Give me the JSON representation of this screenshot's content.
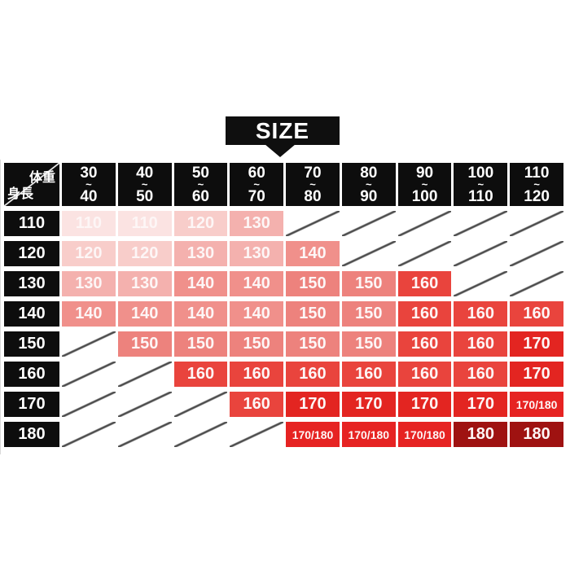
{
  "banner": {
    "label": "SIZE"
  },
  "chart_data": {
    "type": "table",
    "title": "SIZE",
    "corner": {
      "weight_label": "体重",
      "height_label": "身長"
    },
    "weight_columns": [
      {
        "from": "30",
        "tilde": "~",
        "to": "40"
      },
      {
        "from": "40",
        "tilde": "~",
        "to": "50"
      },
      {
        "from": "50",
        "tilde": "~",
        "to": "60"
      },
      {
        "from": "60",
        "tilde": "~",
        "to": "70"
      },
      {
        "from": "70",
        "tilde": "~",
        "to": "80"
      },
      {
        "from": "80",
        "tilde": "~",
        "to": "90"
      },
      {
        "from": "90",
        "tilde": "~",
        "to": "100"
      },
      {
        "from": "100",
        "tilde": "~",
        "to": "110"
      },
      {
        "from": "110",
        "tilde": "~",
        "to": "120"
      }
    ],
    "rows": [
      {
        "height": "110",
        "cells": [
          "110",
          "110",
          "120",
          "130",
          null,
          null,
          null,
          null,
          null
        ]
      },
      {
        "height": "120",
        "cells": [
          "120",
          "120",
          "130",
          "130",
          "140",
          null,
          null,
          null,
          null
        ]
      },
      {
        "height": "130",
        "cells": [
          "130",
          "130",
          "140",
          "140",
          "150",
          "150",
          "160",
          null,
          null
        ]
      },
      {
        "height": "140",
        "cells": [
          "140",
          "140",
          "140",
          "140",
          "150",
          "150",
          "160",
          "160",
          "160"
        ]
      },
      {
        "height": "150",
        "cells": [
          null,
          "150",
          "150",
          "150",
          "150",
          "150",
          "160",
          "160",
          "170"
        ]
      },
      {
        "height": "160",
        "cells": [
          null,
          null,
          "160",
          "160",
          "160",
          "160",
          "160",
          "160",
          "170"
        ]
      },
      {
        "height": "170",
        "cells": [
          null,
          null,
          null,
          "160",
          "170",
          "170",
          "170",
          "170",
          "170/180"
        ]
      },
      {
        "height": "180",
        "cells": [
          null,
          null,
          null,
          null,
          "170/180",
          "170/180",
          "170/180",
          "180",
          "180"
        ]
      }
    ]
  },
  "size_colors": {
    "110": "#fbe3e2",
    "120": "#f8cdca",
    "130": "#f4b1ae",
    "140": "#f0908b",
    "150": "#ed827d",
    "160": "#e9443d",
    "170": "#e32521",
    "170/180": "#e62322",
    "180": "#9f1211"
  },
  "empty_line_color": "#4b4b4b"
}
